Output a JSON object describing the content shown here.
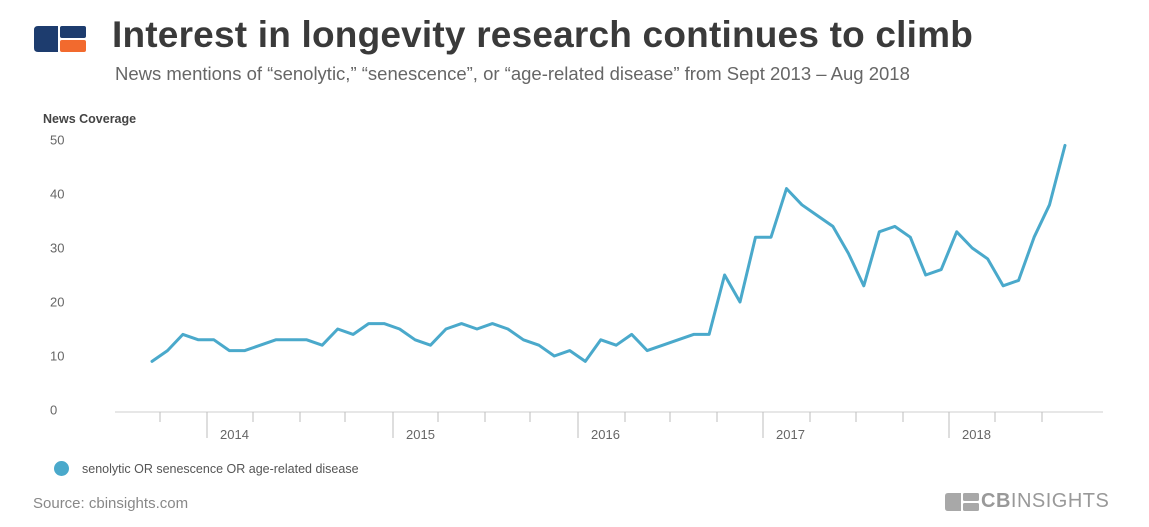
{
  "header": {
    "title": "Interest in longevity research continues to climb",
    "subtitle": "News mentions of “senolytic,” “senescence”, or “age-related disease” from Sept 2013 – Aug 2018"
  },
  "footer": {
    "source": "Source: cbinsights.com",
    "brand_bold": "CB",
    "brand_rest": "INSIGHTS"
  },
  "colors": {
    "line": "#4aa9cb",
    "logo_navy": "#1d3c6e",
    "logo_orange": "#f26a2e"
  },
  "chart_data": {
    "type": "line",
    "title": "Interest in longevity research continues to climb",
    "ylabel": "News Coverage",
    "xlabel": "",
    "ylim": [
      0,
      50
    ],
    "yticks": [
      0,
      10,
      20,
      30,
      40,
      50
    ],
    "x_tick_labels": [
      "2014",
      "2015",
      "2016",
      "2017",
      "2018"
    ],
    "legend": [
      "senolytic OR senescence OR age-related disease"
    ],
    "series": [
      {
        "name": "senolytic OR senescence OR age-related disease",
        "values": [
          9,
          11,
          14,
          13,
          13,
          11,
          11,
          12,
          13,
          13,
          13,
          12,
          15,
          14,
          16,
          16,
          15,
          13,
          12,
          15,
          16,
          15,
          16,
          15,
          13,
          12,
          10,
          11,
          9,
          13,
          12,
          14,
          11,
          12,
          13,
          14,
          14,
          25,
          20,
          32,
          32,
          41,
          38,
          36,
          34,
          29,
          23,
          33,
          34,
          32,
          25,
          26,
          33,
          30,
          28,
          23,
          24,
          32,
          38,
          49
        ]
      }
    ]
  }
}
